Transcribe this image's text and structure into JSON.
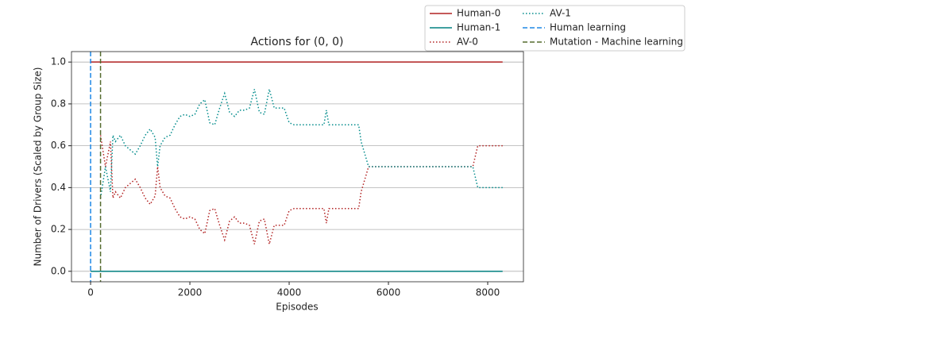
{
  "chart_data": {
    "type": "line",
    "title": "Actions for (0, 0)",
    "x_label": "Episodes",
    "y_label": "Number of Drivers (Scaled by Group Size)",
    "xlim": [
      -385,
      8720
    ],
    "ylim": [
      -0.05,
      1.05
    ],
    "xticks": [
      0,
      2000,
      4000,
      6000,
      8000
    ],
    "yticks": [
      {
        "value": 0,
        "label": "0.0"
      },
      {
        "value": 0.2,
        "label": "0.2"
      },
      {
        "value": 0.4,
        "label": "0.4"
      },
      {
        "value": 0.6,
        "label": "0.6"
      },
      {
        "value": 0.8,
        "label": "0.8"
      },
      {
        "value": 1,
        "label": "1.0"
      }
    ],
    "grid": "y",
    "legend": "upper right outside",
    "series": [
      {
        "name": "Human-0",
        "color": "#b22222",
        "linestyle": "solid",
        "x": [
          0,
          8300
        ],
        "values": [
          1,
          1
        ]
      },
      {
        "name": "Human-1",
        "color": "#008080",
        "linestyle": "solid",
        "x": [
          0,
          8300
        ],
        "values": [
          0,
          0
        ]
      },
      {
        "name": "AV-0",
        "color": "#b22222",
        "linestyle": "dotted",
        "x": [
          200,
          300,
          400,
          450,
          500,
          600,
          700,
          800,
          900,
          1000,
          1100,
          1200,
          1300,
          1350,
          1400,
          1500,
          1600,
          1700,
          1800,
          1900,
          2000,
          2100,
          2200,
          2300,
          2400,
          2500,
          2600,
          2700,
          2800,
          2900,
          3000,
          3100,
          3200,
          3300,
          3400,
          3500,
          3600,
          3700,
          3800,
          3900,
          4000,
          4100,
          4700,
          4750,
          4800,
          5400,
          5450,
          5500,
          5600,
          7700,
          7800,
          8300
        ],
        "values": [
          0.65,
          0.5,
          0.62,
          0.35,
          0.38,
          0.35,
          0.4,
          0.42,
          0.44,
          0.4,
          0.35,
          0.32,
          0.36,
          0.5,
          0.4,
          0.36,
          0.35,
          0.3,
          0.26,
          0.25,
          0.26,
          0.25,
          0.2,
          0.18,
          0.29,
          0.3,
          0.22,
          0.15,
          0.24,
          0.26,
          0.23,
          0.23,
          0.22,
          0.13,
          0.24,
          0.25,
          0.13,
          0.22,
          0.22,
          0.22,
          0.29,
          0.3,
          0.3,
          0.23,
          0.3,
          0.3,
          0.38,
          0.42,
          0.5,
          0.5,
          0.6,
          0.6
        ]
      },
      {
        "name": "AV-1",
        "color": "#008b8b",
        "linestyle": "dotted",
        "x": [
          200,
          300,
          400,
          450,
          500,
          600,
          700,
          800,
          900,
          1000,
          1100,
          1200,
          1300,
          1350,
          1400,
          1500,
          1600,
          1700,
          1800,
          1900,
          2000,
          2100,
          2200,
          2300,
          2400,
          2500,
          2600,
          2700,
          2800,
          2900,
          3000,
          3100,
          3200,
          3300,
          3400,
          3500,
          3600,
          3700,
          3800,
          3900,
          4000,
          4100,
          4700,
          4750,
          4800,
          5400,
          5450,
          5500,
          5600,
          7700,
          7800,
          8300
        ],
        "values": [
          0.35,
          0.5,
          0.38,
          0.65,
          0.62,
          0.65,
          0.6,
          0.58,
          0.56,
          0.6,
          0.65,
          0.68,
          0.64,
          0.5,
          0.6,
          0.64,
          0.65,
          0.7,
          0.74,
          0.75,
          0.74,
          0.75,
          0.8,
          0.82,
          0.71,
          0.7,
          0.78,
          0.85,
          0.76,
          0.74,
          0.77,
          0.77,
          0.78,
          0.87,
          0.76,
          0.75,
          0.87,
          0.78,
          0.78,
          0.78,
          0.71,
          0.7,
          0.7,
          0.77,
          0.7,
          0.7,
          0.62,
          0.58,
          0.5,
          0.5,
          0.4,
          0.4
        ]
      }
    ],
    "vlines": [
      {
        "name": "Human learning",
        "color": "#1e88e5",
        "linestyle": "dashed",
        "x": 0
      },
      {
        "name": "Mutation - Machine learning",
        "color": "#556b2f",
        "linestyle": "dashed",
        "x": 200
      }
    ]
  }
}
